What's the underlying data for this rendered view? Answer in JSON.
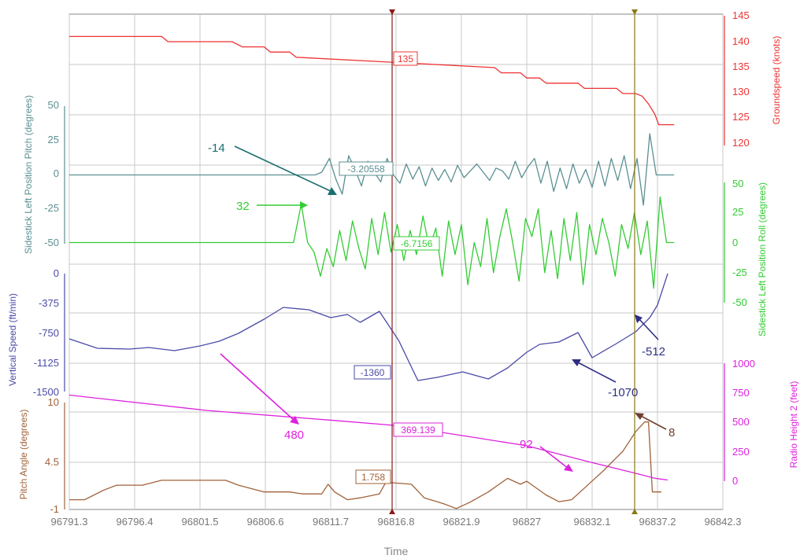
{
  "chart_data": {
    "type": "line",
    "x_axis": {
      "label": "Time",
      "range": [
        96791.3,
        96842.3
      ],
      "ticks": [
        96791.3,
        96796.4,
        96801.5,
        96806.6,
        96811.7,
        96816.8,
        96821.9,
        96827,
        96832.1,
        96837.2,
        96842.3
      ],
      "tick_labels": [
        "96791.3",
        "96796.4",
        "96801.5",
        "96806.6",
        "96811.7",
        "96816.8",
        "96821.9",
        "96827",
        "96832.1",
        "96837.2",
        "96842.3"
      ]
    },
    "grid": true,
    "cursors": [
      {
        "x": 96817.0,
        "color": "#8b1a1a"
      },
      {
        "x": 96836.6,
        "color": "#8a7a10"
      }
    ],
    "panels": [
      {
        "id": "groundspeed",
        "ylabel": "Groundspeed (knots)",
        "axis_side": "right",
        "ylim": [
          120,
          145
        ],
        "ticks": [
          120,
          125,
          130,
          135,
          140,
          145
        ],
        "color": "#ee3333",
        "series": [
          {
            "x": [
              96791.3,
              96798.5,
              96799.0,
              96804.0,
              96804.8,
              96806.5,
              96807.0,
              96808.5,
              96809.0,
              96824.5,
              96825.0,
              96826.5,
              96827.0,
              96828.0,
              96828.5,
              96831.0,
              96831.5,
              96834.0,
              96834.5,
              96835.5,
              96836.0,
              96836.5,
              96837.0,
              96837.3,
              96838.5
            ],
            "y": [
              141,
              141,
              140,
              140,
              139,
              139,
              138,
              138,
              137,
              135,
              134,
              134,
              133,
              133,
              132,
              132,
              131,
              131,
              130,
              130,
              129.5,
              128,
              126,
              124,
              124
            ]
          }
        ],
        "annotations": [
          {
            "label": "135",
            "type": "cursor-readout"
          }
        ]
      },
      {
        "id": "pitch",
        "ylabel": "Sidestick Left Position Pitch (degrees)",
        "axis_side": "left",
        "ylim": [
          -50,
          50
        ],
        "ticks": [
          -50,
          -25,
          0,
          25,
          50
        ],
        "color": "#5b8f91",
        "series": [
          {
            "x": [
              96791.3,
              96810.5,
              96811.0,
              96811.6,
              96812.1,
              96812.6,
              96813.1,
              96813.6,
              96814.1,
              96814.6,
              96815.1,
              96815.6,
              96816.1,
              96816.6,
              96817.1,
              96817.6,
              96818.1,
              96818.6,
              96819.1,
              96819.6,
              96820.1,
              96820.6,
              96821.1,
              96821.6,
              96822.1,
              96822.6,
              96823.1,
              96823.6,
              96824.1,
              96824.6,
              96825.1,
              96825.6,
              96826.1,
              96826.6,
              96827.1,
              96827.6,
              96828.1,
              96828.6,
              96829.1,
              96829.6,
              96830.1,
              96830.6,
              96831.1,
              96831.6,
              96832.1,
              96832.6,
              96833.1,
              96833.6,
              96834.1,
              96834.6,
              96835.1,
              96835.6,
              96836.1,
              96836.6,
              96837.1,
              96837.6,
              96838.5
            ],
            "y": [
              0,
              0,
              2,
              12,
              -3,
              -14,
              14,
              4,
              -8,
              10,
              2,
              -5,
              12,
              0,
              -6,
              8,
              -3,
              6,
              -8,
              5,
              -4,
              4,
              -5,
              7,
              -2,
              3,
              8,
              2,
              -4,
              5,
              3,
              -3,
              10,
              -2,
              6,
              12,
              -6,
              10,
              -12,
              5,
              -10,
              8,
              -6,
              4,
              -9,
              10,
              -8,
              12,
              -4,
              14,
              -10,
              12,
              -22,
              30,
              0,
              0,
              0
            ]
          }
        ],
        "annotations": [
          {
            "label": "-14",
            "type": "callout"
          },
          {
            "label": "-3.20558",
            "type": "cursor-readout"
          }
        ]
      },
      {
        "id": "roll",
        "ylabel": "Sidestick Left Position Roll (degrees)",
        "axis_side": "right",
        "ylim": [
          -50,
          50
        ],
        "ticks": [
          -50,
          -25,
          0,
          25,
          50
        ],
        "color": "#33cc33",
        "series": [
          {
            "x": [
              96791.3,
              96808.8,
              96809.4,
              96809.9,
              96810.4,
              96810.9,
              96811.4,
              96811.9,
              96812.4,
              96812.9,
              96813.4,
              96813.9,
              96814.4,
              96814.9,
              96815.4,
              96815.9,
              96816.4,
              96816.9,
              96817.4,
              96817.9,
              96818.4,
              96818.9,
              96819.4,
              96819.9,
              96820.4,
              96820.9,
              96821.4,
              96821.9,
              96822.4,
              96822.9,
              96823.4,
              96823.9,
              96824.4,
              96824.9,
              96825.4,
              96825.9,
              96826.4,
              96826.9,
              96827.4,
              96827.9,
              96828.4,
              96828.9,
              96829.4,
              96829.9,
              96830.4,
              96830.9,
              96831.4,
              96831.9,
              96832.4,
              96832.9,
              96833.4,
              96833.9,
              96834.4,
              96834.9,
              96835.4,
              96835.9,
              96836.4,
              96836.9,
              96837.4,
              96837.9,
              96838.5
            ],
            "y": [
              0,
              0,
              32,
              0,
              -8,
              -28,
              -5,
              -20,
              10,
              -15,
              18,
              -5,
              -22,
              20,
              -10,
              25,
              -8,
              15,
              -15,
              10,
              -10,
              22,
              -5,
              12,
              -28,
              18,
              -10,
              15,
              -35,
              0,
              -20,
              20,
              -25,
              5,
              28,
              0,
              -32,
              20,
              5,
              28,
              -25,
              10,
              -30,
              20,
              -15,
              25,
              -35,
              15,
              -10,
              20,
              0,
              -28,
              15,
              -5,
              25,
              -10,
              18,
              -38,
              38,
              0,
              0
            ]
          }
        ],
        "annotations": [
          {
            "label": "32",
            "type": "callout"
          },
          {
            "label": "-6.7156",
            "type": "cursor-readout"
          }
        ]
      },
      {
        "id": "vertical_speed",
        "ylabel": "Vertical Speed (ft/min)",
        "axis_side": "left",
        "ylim": [
          -1500,
          0
        ],
        "ticks": [
          -1500,
          -1125,
          -750,
          -375,
          0
        ],
        "color": "#4a4aa8",
        "series": [
          {
            "x": [
              96791.3,
              96793.5,
              96796.0,
              96797.5,
              96799.5,
              96801.5,
              96803.0,
              96804.5,
              96806.5,
              96808.0,
              96810.0,
              96811.7,
              96813.0,
              96814.0,
              96815.5,
              96817.0,
              96818.5,
              96820.0,
              96822.0,
              96824.0,
              96825.5,
              96827.0,
              96828.0,
              96829.5,
              96831.0,
              96832.1,
              96834.0,
              96835.5,
              96836.6,
              96837.2,
              96838.0
            ],
            "y": [
              -830,
              -950,
              -960,
              -940,
              -980,
              -920,
              -860,
              -760,
              -580,
              -430,
              -460,
              -560,
              -520,
              -620,
              -480,
              -850,
              -1360,
              -1320,
              -1250,
              -1340,
              -1200,
              -1000,
              -900,
              -870,
              -750,
              -1070,
              -890,
              -740,
              -560,
              -400,
              0
            ]
          }
        ],
        "annotations": [
          {
            "label": "-1360",
            "type": "cursor-readout"
          },
          {
            "label": "-1070",
            "type": "callout"
          },
          {
            "label": "-512",
            "type": "callout"
          }
        ]
      },
      {
        "id": "radio_height",
        "ylabel": "Radio Height 2 (feet)",
        "axis_side": "right",
        "ylim": [
          0,
          1000
        ],
        "ticks": [
          0,
          250,
          500,
          750,
          1000
        ],
        "color": "#dd22dd",
        "series": [
          {
            "x": [
              96791.3,
              96802.0,
              96812.0,
              96817.0,
              96823.0,
              96827.0,
              96832.0,
              96835.0,
              96837.0,
              96838.0
            ],
            "y": [
              730,
              600,
              515,
              470,
              369,
              300,
              160,
              80,
              25,
              10
            ]
          }
        ],
        "annotations": [
          {
            "label": "480",
            "type": "callout"
          },
          {
            "label": "369.139",
            "type": "cursor-readout"
          },
          {
            "label": "92",
            "type": "callout"
          }
        ]
      },
      {
        "id": "pitch_angle",
        "ylabel": "Pitch Angle (degrees)",
        "axis_side": "left",
        "ylim": [
          -1,
          10
        ],
        "ticks": [
          -1,
          4.5,
          10
        ],
        "color": "#a0623a",
        "series": [
          {
            "x": [
              96791.3,
              96792.5,
              96794.0,
              96795.0,
              96797.0,
              96798.5,
              96803.5,
              96804.5,
              96806.5,
              96808.5,
              96809.5,
              96811.0,
              96811.5,
              96812.0,
              96813.0,
              96814.0,
              96815.5,
              96816.0,
              96818.0,
              96819.0,
              96820.5,
              96821.5,
              96822.5,
              96824.0,
              96825.5,
              96826.5,
              96827.0,
              96828.5,
              96829.5,
              96830.5,
              96831.5,
              96833.0,
              96834.5,
              96835.5,
              96836.2,
              96836.5,
              96836.8,
              96837.5
            ],
            "y": [
              0,
              0,
              1,
              1.5,
              1.5,
              2,
              2,
              1.5,
              0.8,
              0.8,
              0.6,
              0.6,
              1.6,
              0.8,
              0,
              0.2,
              0.6,
              1.8,
              1.6,
              0.2,
              -0.4,
              -0.9,
              -0.3,
              0.8,
              2.2,
              1.6,
              1.9,
              0.5,
              -0.2,
              0,
              1.2,
              3.0,
              5.0,
              7.0,
              8.0,
              8.0,
              0.8,
              0.8
            ]
          }
        ],
        "annotations": [
          {
            "label": "1.758",
            "type": "cursor-readout"
          },
          {
            "label": "8",
            "type": "callout"
          }
        ]
      }
    ]
  },
  "labels": {
    "xlabel": "Time",
    "gs_label": "Groundspeed (knots)",
    "pitch_label": "Sidestick Left Position Pitch (degrees)",
    "roll_label": "Sidestick Left Position Roll (degrees)",
    "vs_label": "Vertical Speed (ft/min)",
    "rh_label": "Radio Height 2 (feet)",
    "pa_label": "Pitch Angle (degrees)",
    "gs_tick_145": "145",
    "gs_tick_140": "140",
    "gs_tick_135": "135",
    "gs_tick_130": "130",
    "gs_tick_125": "125",
    "gs_tick_120": "120",
    "p_tick_50": "50",
    "p_tick_25": "25",
    "p_tick_0": "0",
    "p_tick_m25": "-25",
    "p_tick_m50": "-50",
    "r_tick_50": "50",
    "r_tick_25": "25",
    "r_tick_0": "0",
    "r_tick_m25": "-25",
    "r_tick_m50": "-50",
    "vs_tick_0": "0",
    "vs_tick_m375": "-375",
    "vs_tick_m750": "-750",
    "vs_tick_m1125": "-1125",
    "vs_tick_m1500": "-1500",
    "rh_tick_1000": "1000",
    "rh_tick_750": "750",
    "rh_tick_500": "500",
    "rh_tick_250": "250",
    "rh_tick_0": "0",
    "pa_tick_10": "10",
    "pa_tick_45": "4.5",
    "pa_tick_m1": "-1",
    "gs_readout": "135",
    "p_readout": "-3.20558",
    "p_callout": "-14",
    "r_readout": "-6.7156",
    "r_callout": "32",
    "vs_readout": "-1360",
    "vs_callout1": "-1070",
    "vs_callout2": "-512",
    "rh_readout": "369.139",
    "rh_callout1": "480",
    "rh_callout2": "92",
    "pa_readout": "1.758",
    "pa_callout": "8"
  },
  "colors": {
    "groundspeed": "#ee3333",
    "pitch": "#5b8f91",
    "roll": "#33cc33",
    "vertical_speed": "#4a4aa8",
    "radio_height": "#dd22dd",
    "pitch_angle": "#a0623a",
    "cursor1": "#8b1a1a",
    "cursor2": "#8a7a10",
    "grid": "#c8c8c8"
  }
}
